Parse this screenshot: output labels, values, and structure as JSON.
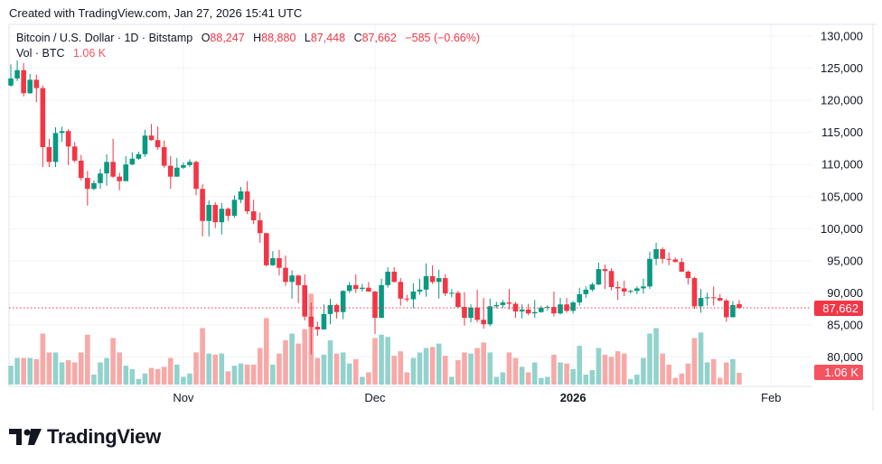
{
  "header": {
    "created": "Created with TradingView.com, Jan 27, 2026 15:41 UTC"
  },
  "legend": {
    "symbol": "Bitcoin / U.S. Dollar · 1D · Bitstamp",
    "o_label": "O",
    "o": "88,247",
    "h_label": "H",
    "h": "88,880",
    "l_label": "L",
    "l": "87,448",
    "c_label": "C",
    "c": "87,662",
    "change": "−585 (−0.66%)",
    "vol_label": "Vol · BTC",
    "vol": "1.06 K"
  },
  "logo": {
    "text": "TradingView"
  },
  "colors": {
    "up": "#089981",
    "down": "#f23645",
    "vol_up": "#92d2cc",
    "vol_down": "#f7a9a7",
    "last_price": "#f23645",
    "last_vol": "#f7525f",
    "grid": "#f0f3fa"
  },
  "chart_data": {
    "type": "candlestick",
    "title": "Bitcoin / U.S. Dollar · 1D · Bitstamp",
    "ylim": [
      75000,
      132000
    ],
    "y_ticks": [
      "130,000",
      "125,000",
      "120,000",
      "115,000",
      "110,000",
      "105,000",
      "100,000",
      "95,000",
      "90,000",
      "85,000",
      "80,000"
    ],
    "x_ticks": [
      {
        "label": "Nov",
        "date": "2025-11-01",
        "bold": false
      },
      {
        "label": "Dec",
        "date": "2025-12-01",
        "bold": false
      },
      {
        "label": "2026",
        "date": "2026-01-01",
        "bold": true
      },
      {
        "label": "Feb",
        "date": "2026-02-01",
        "bold": false
      }
    ],
    "first_date": "2025-10-05",
    "last_price_label": "87,662",
    "last_volume_label": "1.06 K",
    "units": {
      "price": "USD (thousands)",
      "volume": "K BTC"
    },
    "candles_ohlcv": [
      [
        122.3,
        125.6,
        122.1,
        123.4,
        1.7
      ],
      [
        123.4,
        126.2,
        123.0,
        124.7,
        2.4
      ],
      [
        124.7,
        125.8,
        120.6,
        121.1,
        2.4
      ],
      [
        121.1,
        124.1,
        121.0,
        123.2,
        2.4
      ],
      [
        123.2,
        124.0,
        119.7,
        121.9,
        2.3
      ],
      [
        121.9,
        122.3,
        109.6,
        112.7,
        4.6
      ],
      [
        112.7,
        114.0,
        109.6,
        110.4,
        2.9
      ],
      [
        110.4,
        115.8,
        109.6,
        114.9,
        2.9
      ],
      [
        114.9,
        115.9,
        113.5,
        115.2,
        2.0
      ],
      [
        115.2,
        115.5,
        109.9,
        112.8,
        2.2
      ],
      [
        112.8,
        113.5,
        110.3,
        110.6,
        2.0
      ],
      [
        110.6,
        111.5,
        107.5,
        107.9,
        2.9
      ],
      [
        107.9,
        109.0,
        103.6,
        106.2,
        4.5
      ],
      [
        106.2,
        107.5,
        106.0,
        107.1,
        0.9
      ],
      [
        107.1,
        109.3,
        106.2,
        108.6,
        2.0
      ],
      [
        108.6,
        111.6,
        106.7,
        110.4,
        2.4
      ],
      [
        110.4,
        114.0,
        107.9,
        108.1,
        4.2
      ],
      [
        108.1,
        108.7,
        106.0,
        107.4,
        2.9
      ],
      [
        107.4,
        111.3,
        107.4,
        110.0,
        1.7
      ],
      [
        110.0,
        111.9,
        109.9,
        110.9,
        1.4
      ],
      [
        110.9,
        112.0,
        110.7,
        111.6,
        0.5
      ],
      [
        111.6,
        115.4,
        111.2,
        114.5,
        1.0
      ],
      [
        114.5,
        116.3,
        113.7,
        113.8,
        1.5
      ],
      [
        113.8,
        115.9,
        112.3,
        112.7,
        1.4
      ],
      [
        112.7,
        113.7,
        109.5,
        109.8,
        1.6
      ],
      [
        109.8,
        111.3,
        106.2,
        108.1,
        2.4
      ],
      [
        108.1,
        111.0,
        108.1,
        109.5,
        1.8
      ],
      [
        109.5,
        110.3,
        109.3,
        109.9,
        0.7
      ],
      [
        109.9,
        110.8,
        109.6,
        110.4,
        1.0
      ],
      [
        110.4,
        110.6,
        105.2,
        106.2,
        2.9
      ],
      [
        106.2,
        106.9,
        98.8,
        101.2,
        5.1
      ],
      [
        101.2,
        104.4,
        98.8,
        103.7,
        2.8
      ],
      [
        103.7,
        104.1,
        100.1,
        101.0,
        2.7
      ],
      [
        101.0,
        104.0,
        99.1,
        103.1,
        2.8
      ],
      [
        103.1,
        103.3,
        101.2,
        102.0,
        1.2
      ],
      [
        102.0,
        105.2,
        101.7,
        104.5,
        1.7
      ],
      [
        104.5,
        106.5,
        104.0,
        105.8,
        1.9
      ],
      [
        105.8,
        107.4,
        102.3,
        102.7,
        1.8
      ],
      [
        102.7,
        104.5,
        100.7,
        101.3,
        1.8
      ],
      [
        101.3,
        102.5,
        97.8,
        99.3,
        3.3
      ],
      [
        99.3,
        99.4,
        94.1,
        94.3,
        6.0
      ],
      [
        94.3,
        96.5,
        94.2,
        95.4,
        1.8
      ],
      [
        95.4,
        96.7,
        92.7,
        93.9,
        2.8
      ],
      [
        93.9,
        95.8,
        91.1,
        91.7,
        4.0
      ],
      [
        91.7,
        93.5,
        89.1,
        92.7,
        4.6
      ],
      [
        92.7,
        92.8,
        88.4,
        91.2,
        3.7
      ],
      [
        91.2,
        92.9,
        85.7,
        86.3,
        5.0
      ],
      [
        86.3,
        88.5,
        80.4,
        84.7,
        8.2
      ],
      [
        84.7,
        85.5,
        83.3,
        84.3,
        2.4
      ],
      [
        84.3,
        88.2,
        84.3,
        86.7,
        2.7
      ],
      [
        86.7,
        89.1,
        85.1,
        88.1,
        4.0
      ],
      [
        88.1,
        88.3,
        86.0,
        87.0,
        2.8
      ],
      [
        87.0,
        90.4,
        85.9,
        90.3,
        2.9
      ],
      [
        90.3,
        91.7,
        90.0,
        91.2,
        1.9
      ],
      [
        91.2,
        92.9,
        90.0,
        90.6,
        2.3
      ],
      [
        90.6,
        91.4,
        90.2,
        90.8,
        0.7
      ],
      [
        90.8,
        91.7,
        90.2,
        90.2,
        1.1
      ],
      [
        90.2,
        90.3,
        83.6,
        86.1,
        4.2
      ],
      [
        86.1,
        92.2,
        86.1,
        91.2,
        4.5
      ],
      [
        91.2,
        94.0,
        90.8,
        93.3,
        4.3
      ],
      [
        93.3,
        94.0,
        91.6,
        91.7,
        2.6
      ],
      [
        91.7,
        92.3,
        88.0,
        89.1,
        3.0
      ],
      [
        89.1,
        89.7,
        88.6,
        89.0,
        1.1
      ],
      [
        89.0,
        91.5,
        87.6,
        90.2,
        2.4
      ],
      [
        90.2,
        92.2,
        89.7,
        90.5,
        2.9
      ],
      [
        90.5,
        94.6,
        89.4,
        92.6,
        3.3
      ],
      [
        92.6,
        94.3,
        91.4,
        91.7,
        3.4
      ],
      [
        91.7,
        93.6,
        89.1,
        92.3,
        3.7
      ],
      [
        92.3,
        92.9,
        89.5,
        89.9,
        2.6
      ],
      [
        89.9,
        90.6,
        89.3,
        90.0,
        0.7
      ],
      [
        90.0,
        90.3,
        87.6,
        87.8,
        2.2
      ],
      [
        87.8,
        90.1,
        84.9,
        86.1,
        2.9
      ],
      [
        86.1,
        88.2,
        85.4,
        87.7,
        2.8
      ],
      [
        87.7,
        90.5,
        85.4,
        85.8,
        3.3
      ],
      [
        85.8,
        89.2,
        84.4,
        85.1,
        3.8
      ],
      [
        85.1,
        89.1,
        84.8,
        87.9,
        2.9
      ],
      [
        87.9,
        88.6,
        87.6,
        88.1,
        0.7
      ],
      [
        88.1,
        88.9,
        87.6,
        88.5,
        1.1
      ],
      [
        88.5,
        90.6,
        87.4,
        88.3,
        2.9
      ],
      [
        88.3,
        88.6,
        86.1,
        87.1,
        2.4
      ],
      [
        87.1,
        88.2,
        86.0,
        87.4,
        1.6
      ],
      [
        87.4,
        88.3,
        86.5,
        86.8,
        1.1
      ],
      [
        86.8,
        88.9,
        86.1,
        87.0,
        2.0
      ],
      [
        87.0,
        88.0,
        86.9,
        87.7,
        0.6
      ],
      [
        87.7,
        88.1,
        87.2,
        87.8,
        0.7
      ],
      [
        87.8,
        90.2,
        86.3,
        86.8,
        2.7
      ],
      [
        86.8,
        89.2,
        86.6,
        88.2,
        2.0
      ],
      [
        88.2,
        89.2,
        86.9,
        87.2,
        1.9
      ],
      [
        87.2,
        88.7,
        86.8,
        88.5,
        1.4
      ],
      [
        88.5,
        90.8,
        88.0,
        89.8,
        3.5
      ],
      [
        89.8,
        91.0,
        89.2,
        90.5,
        0.9
      ],
      [
        90.5,
        91.6,
        90.2,
        91.3,
        1.3
      ],
      [
        91.3,
        94.7,
        91.2,
        93.7,
        3.3
      ],
      [
        93.7,
        94.4,
        90.6,
        93.4,
        2.7
      ],
      [
        93.4,
        93.8,
        90.4,
        90.9,
        2.5
      ],
      [
        90.9,
        91.8,
        88.9,
        90.7,
        3.0
      ],
      [
        90.7,
        91.9,
        89.5,
        90.2,
        2.8
      ],
      [
        90.2,
        90.5,
        89.9,
        90.3,
        0.5
      ],
      [
        90.3,
        91.0,
        89.8,
        90.7,
        0.9
      ],
      [
        90.7,
        92.2,
        89.9,
        91.0,
        2.4
      ],
      [
        91.0,
        96.4,
        90.6,
        95.3,
        4.6
      ],
      [
        95.3,
        97.8,
        94.3,
        96.8,
        5.1
      ],
      [
        96.8,
        97.1,
        94.6,
        95.3,
        2.8
      ],
      [
        95.3,
        96.3,
        94.3,
        95.2,
        1.8
      ],
      [
        95.2,
        95.5,
        94.8,
        94.8,
        0.6
      ],
      [
        94.8,
        95.4,
        93.3,
        93.3,
        1.0
      ],
      [
        93.3,
        93.5,
        91.3,
        92.3,
        1.9
      ],
      [
        92.3,
        92.5,
        87.5,
        87.9,
        4.2
      ],
      [
        87.9,
        90.6,
        86.9,
        89.2,
        4.7
      ],
      [
        89.2,
        90.0,
        88.0,
        89.3,
        2.0
      ],
      [
        89.3,
        91.0,
        88.0,
        89.2,
        2.3
      ],
      [
        89.2,
        89.8,
        88.7,
        88.8,
        0.6
      ],
      [
        88.8,
        89.1,
        85.5,
        86.2,
        2.0
      ],
      [
        86.2,
        88.7,
        86.2,
        88.1,
        2.3
      ],
      [
        88.247,
        88.88,
        87.448,
        87.662,
        1.06
      ]
    ]
  }
}
